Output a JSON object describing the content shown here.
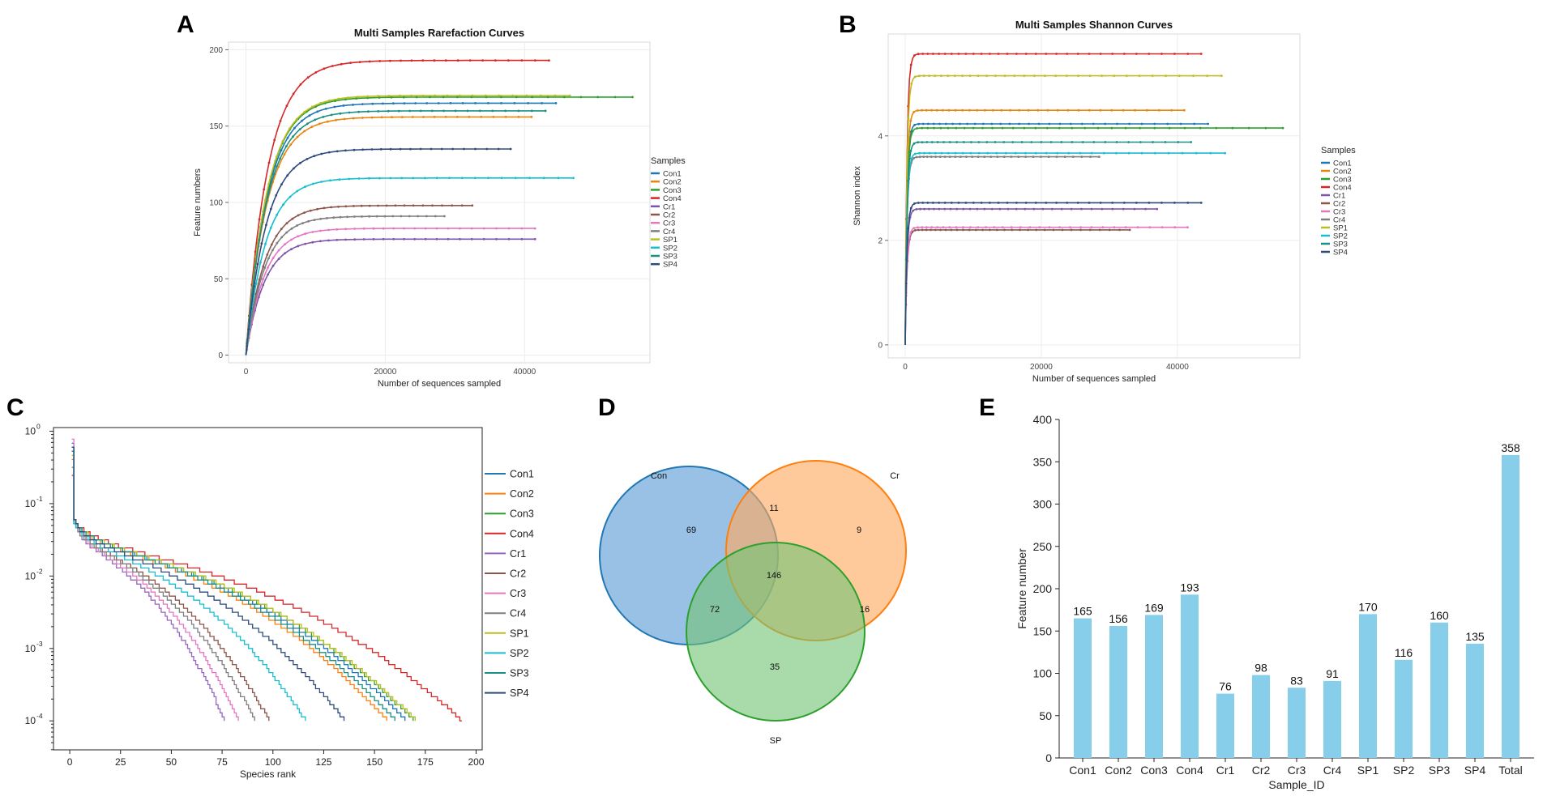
{
  "chart_data": [
    {
      "panel": "A",
      "type": "line",
      "title": "Multi Samples Rarefaction Curves",
      "xlabel": "Number of sequences sampled",
      "ylabel": "Feature numbers",
      "xlim": [
        -2500,
        58000
      ],
      "ylim": [
        -5,
        205
      ],
      "xticks": [
        0,
        20000,
        40000
      ],
      "xtick_labels": [
        "0",
        "20000",
        "40000"
      ],
      "yticks": [
        0,
        50,
        100,
        150,
        200
      ],
      "ytick_labels": [
        "0",
        "50",
        "100",
        "150",
        "200"
      ],
      "grid": true,
      "legend_title": "Samples",
      "legend_position": "right",
      "series": [
        {
          "name": "Con1",
          "color": "#1f77b4",
          "depth": 44500,
          "final": 165
        },
        {
          "name": "Con2",
          "color": "#e8860f",
          "depth": 41000,
          "final": 156
        },
        {
          "name": "Con3",
          "color": "#2ca02c",
          "depth": 55500,
          "final": 169
        },
        {
          "name": "Con4",
          "color": "#d62728",
          "depth": 43500,
          "final": 193
        },
        {
          "name": "Cr1",
          "color": "#7d56a8",
          "depth": 41500,
          "final": 76
        },
        {
          "name": "Cr2",
          "color": "#8c564b",
          "depth": 32500,
          "final": 98
        },
        {
          "name": "Cr3",
          "color": "#e377c2",
          "depth": 41500,
          "final": 83
        },
        {
          "name": "Cr4",
          "color": "#7f7f7f",
          "depth": 28500,
          "final": 91
        },
        {
          "name": "SP1",
          "color": "#bcbd22",
          "depth": 46500,
          "final": 170
        },
        {
          "name": "SP2",
          "color": "#17becf",
          "depth": 47000,
          "final": 116
        },
        {
          "name": "SP3",
          "color": "#1a8f85",
          "depth": 43000,
          "final": 160
        },
        {
          "name": "SP4",
          "color": "#2f4b7c",
          "depth": 38000,
          "final": 135
        }
      ]
    },
    {
      "panel": "B",
      "type": "line",
      "title": "Multi Samples Shannon Curves",
      "xlabel": "Number of sequences sampled",
      "ylabel": "Shannon index",
      "xlim": [
        -2500,
        58000
      ],
      "ylim": [
        -0.25,
        5.95
      ],
      "xticks": [
        0,
        20000,
        40000
      ],
      "xtick_labels": [
        "0",
        "20000",
        "40000"
      ],
      "yticks": [
        0,
        2,
        4
      ],
      "ytick_labels": [
        "0",
        "2",
        "4"
      ],
      "grid": true,
      "legend_title": "Samples",
      "legend_position": "right",
      "series": [
        {
          "name": "Con1",
          "color": "#1f77b4",
          "depth": 44500,
          "final": 4.23
        },
        {
          "name": "Con2",
          "color": "#e8860f",
          "depth": 41000,
          "final": 4.49
        },
        {
          "name": "Con3",
          "color": "#2ca02c",
          "depth": 55500,
          "final": 4.15
        },
        {
          "name": "Con4",
          "color": "#d62728",
          "depth": 43500,
          "final": 5.57
        },
        {
          "name": "Cr1",
          "color": "#7d56a8",
          "depth": 37000,
          "final": 2.6
        },
        {
          "name": "Cr2",
          "color": "#8c564b",
          "depth": 33000,
          "final": 2.2
        },
        {
          "name": "Cr3",
          "color": "#e377c2",
          "depth": 41500,
          "final": 2.25
        },
        {
          "name": "Cr4",
          "color": "#7f7f7f",
          "depth": 28500,
          "final": 3.6
        },
        {
          "name": "SP1",
          "color": "#bcbd22",
          "depth": 46500,
          "final": 5.15
        },
        {
          "name": "SP2",
          "color": "#17becf",
          "depth": 47000,
          "final": 3.67
        },
        {
          "name": "SP3",
          "color": "#1a8f85",
          "depth": 42000,
          "final": 3.88
        },
        {
          "name": "SP4",
          "color": "#2f4b7c",
          "depth": 43500,
          "final": 2.72
        }
      ]
    },
    {
      "panel": "C",
      "type": "line",
      "title": "",
      "xlabel": "Species rank",
      "ylabel": "",
      "xlim": [
        -8,
        203
      ],
      "ylog_range": [
        -4.4,
        0.05
      ],
      "xticks": [
        0,
        25,
        50,
        75,
        100,
        125,
        150,
        175,
        200
      ],
      "xtick_labels": [
        "0",
        "25",
        "50",
        "75",
        "100",
        "125",
        "150",
        "175",
        "200"
      ],
      "ytick_exponents": [
        0,
        -1,
        -2,
        -3,
        -4
      ],
      "ytick_base": "10",
      "grid": false,
      "legend_position": "right",
      "series": [
        {
          "name": "Con1",
          "color": "#1f77b4",
          "ranks": 165
        },
        {
          "name": "Con2",
          "color": "#ff7f0e",
          "ranks": 156
        },
        {
          "name": "Con3",
          "color": "#2ca02c",
          "ranks": 169
        },
        {
          "name": "Con4",
          "color": "#d62728",
          "ranks": 193
        },
        {
          "name": "Cr1",
          "color": "#9467bd",
          "ranks": 76
        },
        {
          "name": "Cr2",
          "color": "#8c564b",
          "ranks": 98
        },
        {
          "name": "Cr3",
          "color": "#e377c2",
          "ranks": 83
        },
        {
          "name": "Cr4",
          "color": "#7f7f7f",
          "ranks": 91
        },
        {
          "name": "SP1",
          "color": "#bcbd22",
          "ranks": 170
        },
        {
          "name": "SP2",
          "color": "#17becf",
          "ranks": 116
        },
        {
          "name": "SP3",
          "color": "#1a8f85",
          "ranks": 160
        },
        {
          "name": "SP4",
          "color": "#2f4b7c",
          "ranks": 135
        }
      ]
    },
    {
      "panel": "D",
      "type": "venn",
      "sets": [
        {
          "name": "Con",
          "color": "#1f77b4",
          "fill": "#5b9bd5"
        },
        {
          "name": "Cr",
          "color": "#ff7f0e",
          "fill": "#ffaa5e"
        },
        {
          "name": "SP",
          "color": "#2ca02c",
          "fill": "#74c476"
        }
      ],
      "regions": [
        {
          "sets": "Con",
          "value": "69"
        },
        {
          "sets": "Cr",
          "value": "9"
        },
        {
          "sets": "SP",
          "value": "35"
        },
        {
          "sets": "Con&Cr",
          "value": "11"
        },
        {
          "sets": "Con&SP",
          "value": "72"
        },
        {
          "sets": "Cr&SP",
          "value": "16"
        },
        {
          "sets": "Con&Cr&SP",
          "value": "146"
        }
      ]
    },
    {
      "panel": "E",
      "type": "bar",
      "title": "",
      "xlabel": "Sample_ID",
      "ylabel": "Feature number",
      "ylim": [
        0,
        400
      ],
      "yticks": [
        0,
        50,
        100,
        150,
        200,
        250,
        300,
        350,
        400
      ],
      "ytick_labels": [
        "0",
        "50",
        "100",
        "150",
        "200",
        "250",
        "300",
        "350",
        "400"
      ],
      "bar_color": "#87ceeb",
      "categories": [
        "Con1",
        "Con2",
        "Con3",
        "Con4",
        "Cr1",
        "Cr2",
        "Cr3",
        "Cr4",
        "SP1",
        "SP2",
        "SP3",
        "SP4",
        "Total"
      ],
      "values": [
        165,
        156,
        169,
        193,
        76,
        98,
        83,
        91,
        170,
        116,
        160,
        135,
        358
      ],
      "value_labels": [
        "165",
        "156",
        "169",
        "193",
        "76",
        "98",
        "83",
        "91",
        "170",
        "116",
        "160",
        "135",
        "358"
      ]
    }
  ],
  "panel_labels": {
    "a": "A",
    "b": "B",
    "c": "C",
    "d": "D",
    "e": "E"
  }
}
